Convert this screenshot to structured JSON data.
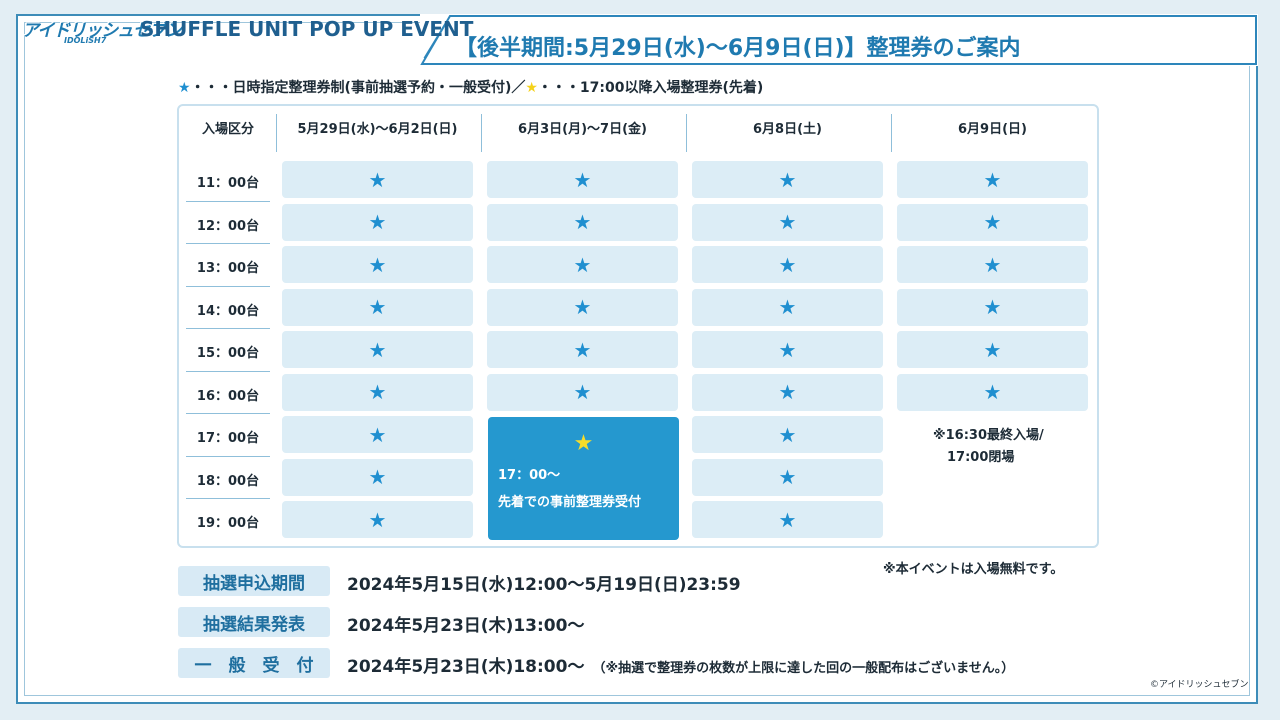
{
  "header": {
    "logo_text": "アイドリッシュセブン",
    "logo_sub": "IDOLiSH7",
    "event_title": "SHUFFLE UNIT POP UP EVENT",
    "main_title": "【後半期間:5月29日(水)〜6月9日(日)】整理券のご案内"
  },
  "legend": {
    "star_blue": "★",
    "blue_text": "・・・日時指定整理券制(事前抽選予約・一般受付)／",
    "star_yellow": "★",
    "yellow_text": "・・・17:00以降入場整理券(先着)"
  },
  "table": {
    "headers": [
      "入場区分",
      "5月29日(水)〜6月2日(日)",
      "6月3日(月)〜7日(金)",
      "6月8日(土)",
      "6月9日(日)"
    ],
    "times": [
      "11：00台",
      "12：00台",
      "13：00台",
      "14：00台",
      "15：00台",
      "16：00台",
      "17：00台",
      "18：00台",
      "19：00台"
    ],
    "cell_mark": "★",
    "special": {
      "star": "★",
      "line1": "17：00〜",
      "line2": "先着での事前整理券受付"
    },
    "note_line1": "※16:30最終入場/",
    "note_line2": "17:00閉場"
  },
  "free_note": "※本イベントは入場無料です。",
  "info": [
    {
      "label": "抽選申込期間",
      "value": "2024年5月15日(水)12:00〜5月19日(日)23:59",
      "note": ""
    },
    {
      "label": "抽選結果発表",
      "value": "2024年5月23日(木)13:00〜",
      "note": ""
    },
    {
      "label": "一　般　受　付",
      "value": "2024年5月23日(木)18:00〜",
      "note": "（※抽選で整理券の枚数が上限に達した回の一般配布はございません。）"
    }
  ],
  "copyright": "©アイドリッシュセブン",
  "colors": {
    "accent": "#1f7ab0",
    "cell": "#dcedf6",
    "special": "#2598cf",
    "star_yellow": "#f5d21a"
  }
}
